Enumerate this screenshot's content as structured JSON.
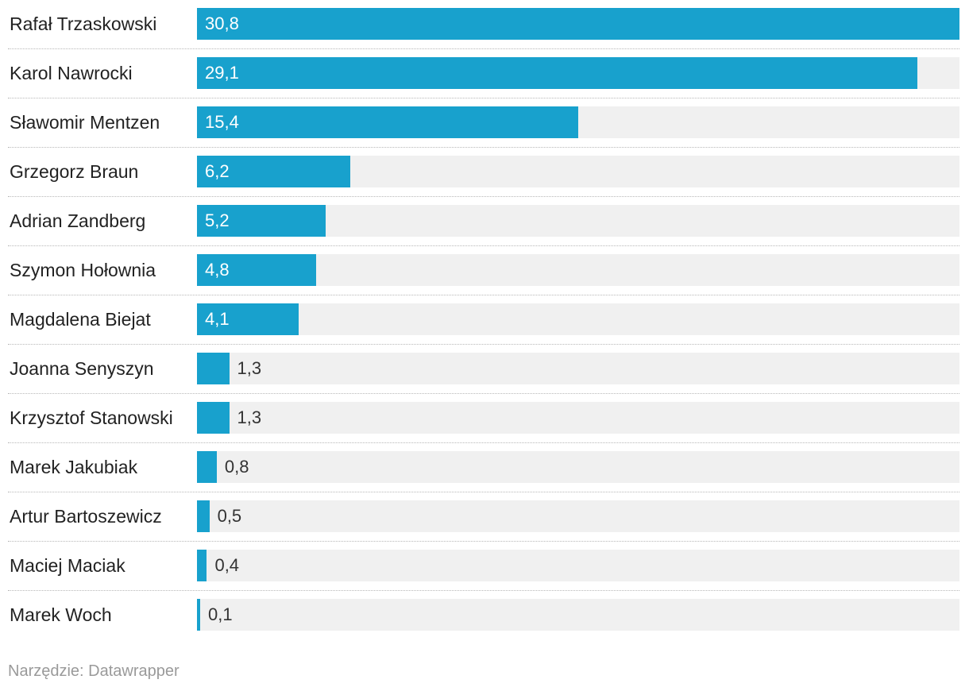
{
  "colors": {
    "bar": "#18a1cd",
    "track": "#f0f0f0"
  },
  "chart_data": {
    "type": "bar",
    "orientation": "horizontal",
    "categories": [
      "Rafał Trzaskowski",
      "Karol Nawrocki",
      "Sławomir Mentzen",
      "Grzegorz Braun",
      "Adrian Zandberg",
      "Szymon Hołownia",
      "Magdalena Biejat",
      "Joanna Senyszyn",
      "Krzysztof Stanowski",
      "Marek Jakubiak",
      "Artur Bartoszewicz",
      "Maciej Maciak",
      "Marek Woch"
    ],
    "values": [
      30.8,
      29.1,
      15.4,
      6.2,
      5.2,
      4.8,
      4.1,
      1.3,
      1.3,
      0.8,
      0.5,
      0.4,
      0.1
    ],
    "value_labels": [
      "30,8",
      "29,1",
      "15,4",
      "6,2",
      "5,2",
      "4,8",
      "4,1",
      "1,3",
      "1,3",
      "0,8",
      "0,5",
      "0,4",
      "0,1"
    ],
    "xlim": [
      0,
      30.8
    ],
    "grid": false,
    "legend": "none"
  },
  "footer": {
    "source": "Narzędzie: Datawrapper"
  }
}
